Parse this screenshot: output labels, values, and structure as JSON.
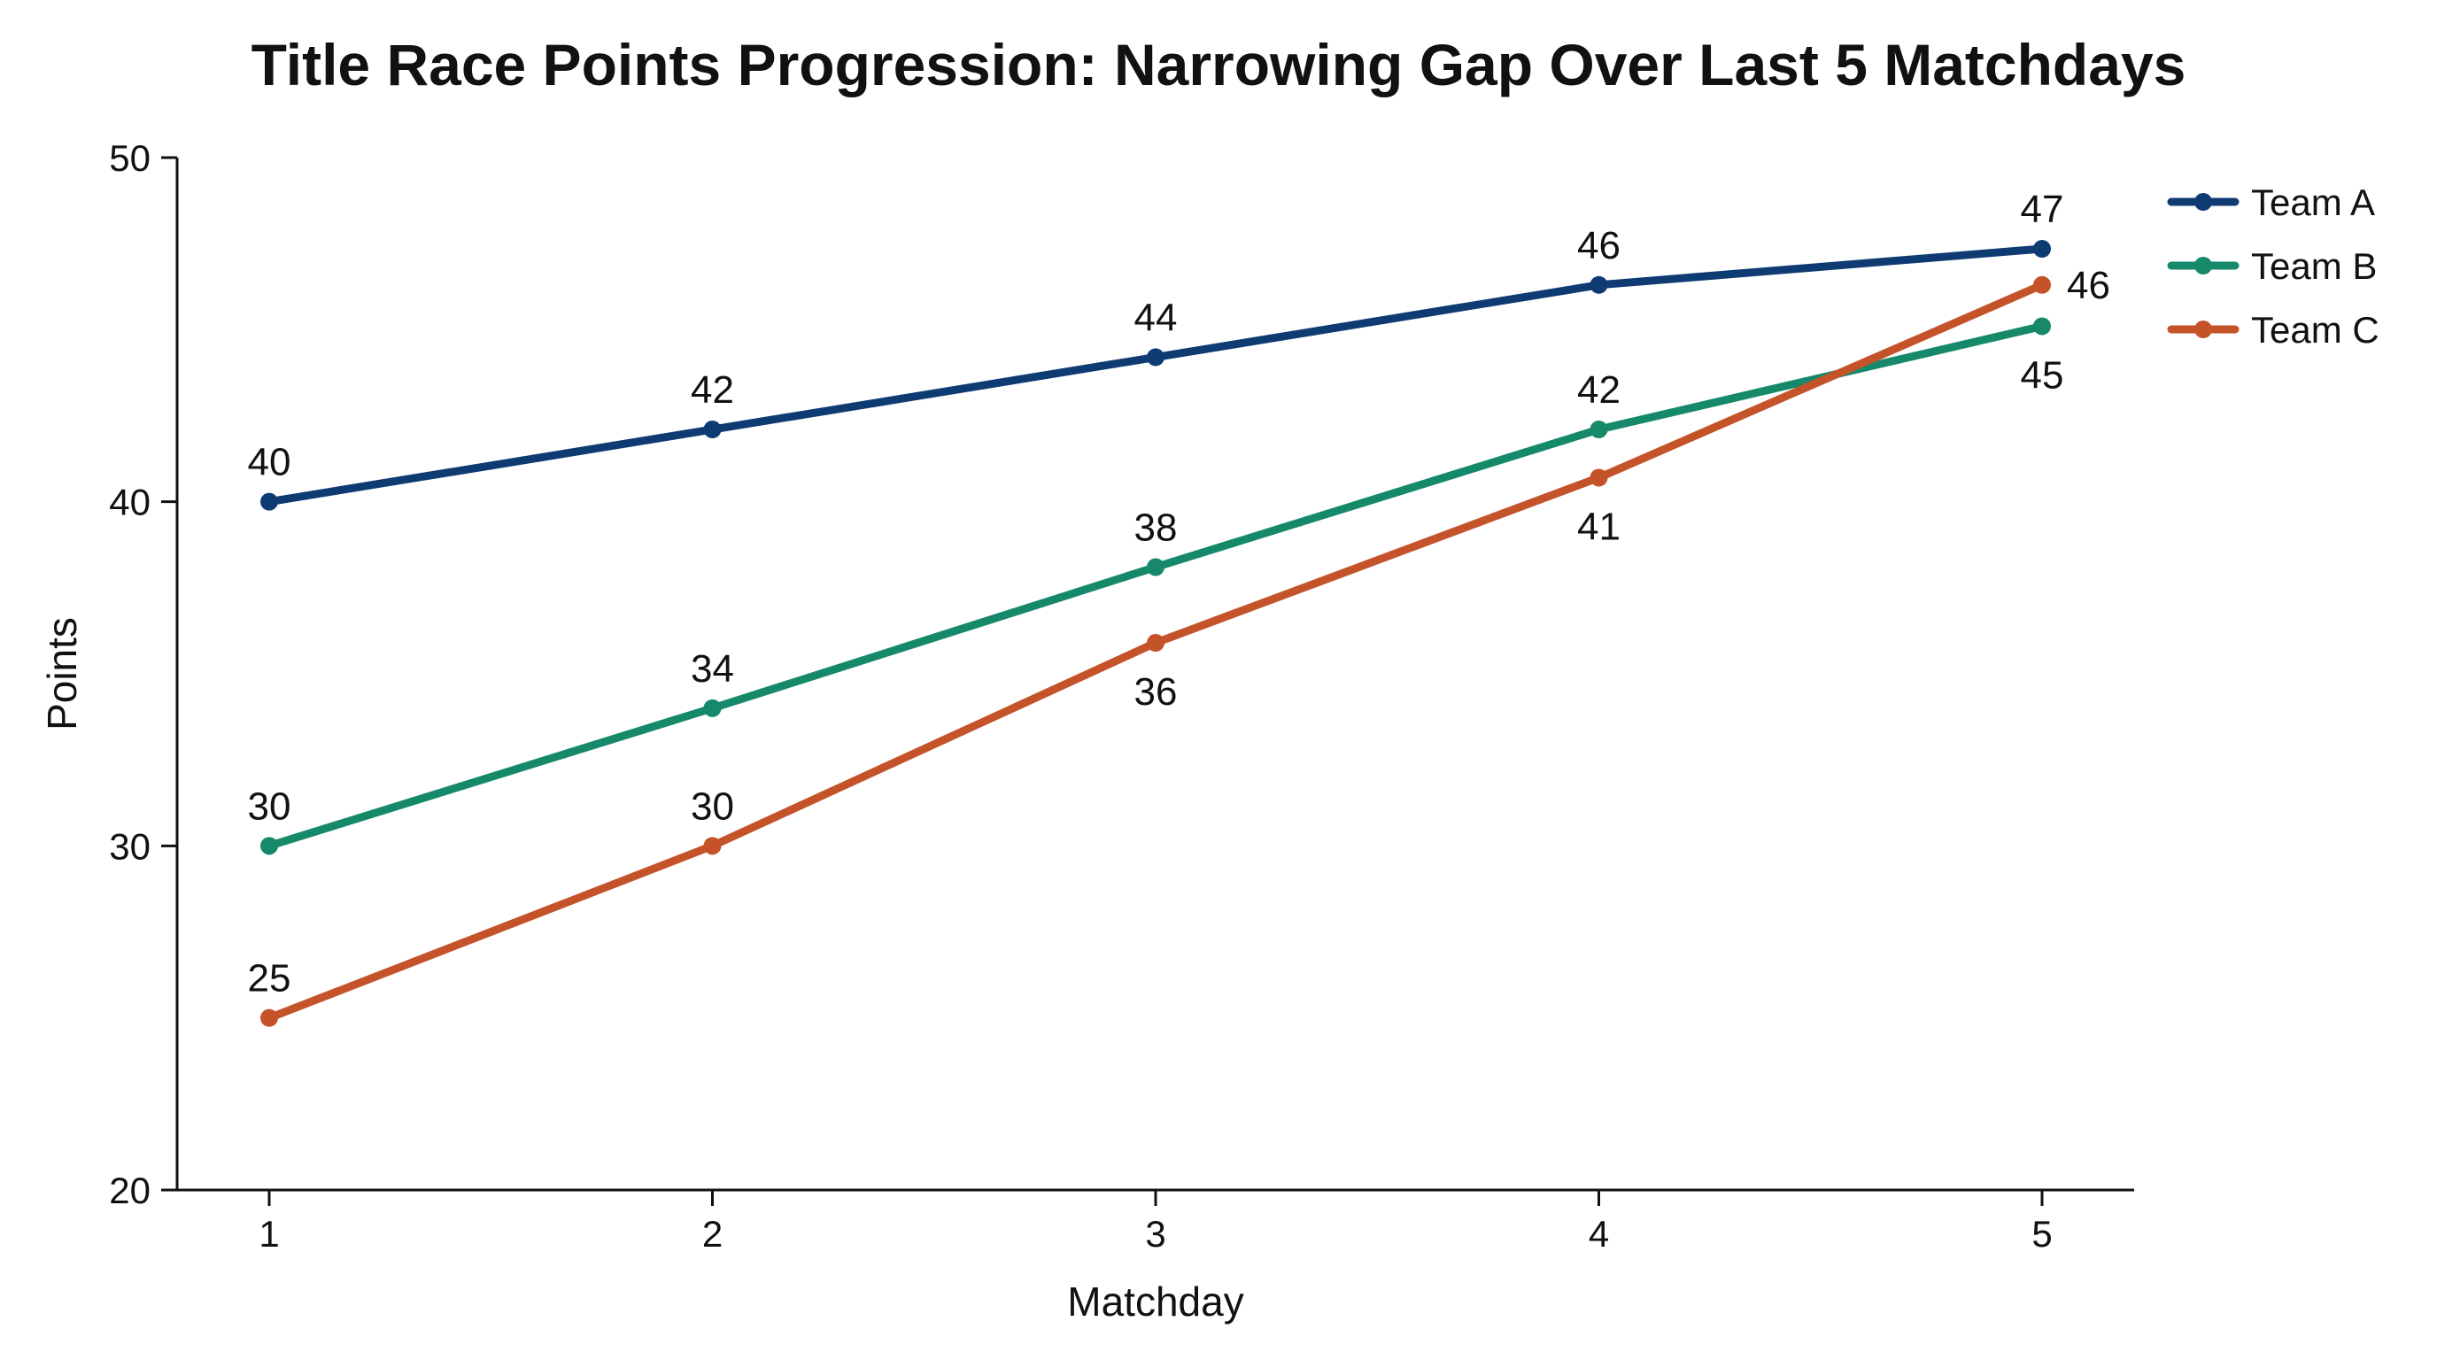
{
  "chart_data": {
    "type": "line",
    "title": "Title Race Points Progression: Narrowing Gap Over Last 5 Matchdays",
    "xlabel": "Matchday",
    "ylabel": "Points",
    "x": [
      1,
      2,
      3,
      4,
      5
    ],
    "x_tick_labels": [
      "1",
      "2",
      "3",
      "4",
      "5"
    ],
    "ylim": [
      20,
      50
    ],
    "y_ticks": [
      20,
      30,
      40,
      50
    ],
    "y_tick_labels": [
      "20",
      "30",
      "40",
      "50"
    ],
    "grid": false,
    "legend_placement": "top-right, outside plot",
    "series": [
      {
        "name": "Team A",
        "color": "#0f3b73",
        "values": [
          40,
          42.1,
          44.2,
          46.3,
          47.35
        ],
        "point_labels": [
          "40",
          "42",
          "44",
          "46",
          "47"
        ],
        "label_position": [
          "above",
          "above",
          "above",
          "above",
          "above"
        ]
      },
      {
        "name": "Team B",
        "color": "#15896a",
        "values": [
          30,
          34,
          38.1,
          42.1,
          45.1
        ],
        "point_labels": [
          "30",
          "34",
          "38",
          "42",
          "45"
        ],
        "label_position": [
          "above",
          "above",
          "above",
          "above",
          "below"
        ]
      },
      {
        "name": "Team C",
        "color": "#c4532a",
        "values": [
          25,
          30,
          35.9,
          40.7,
          46.3
        ],
        "point_labels": [
          "25",
          "30",
          "36",
          "41",
          "46"
        ],
        "label_position": [
          "above",
          "above",
          "below",
          "below",
          "right"
        ]
      }
    ]
  }
}
